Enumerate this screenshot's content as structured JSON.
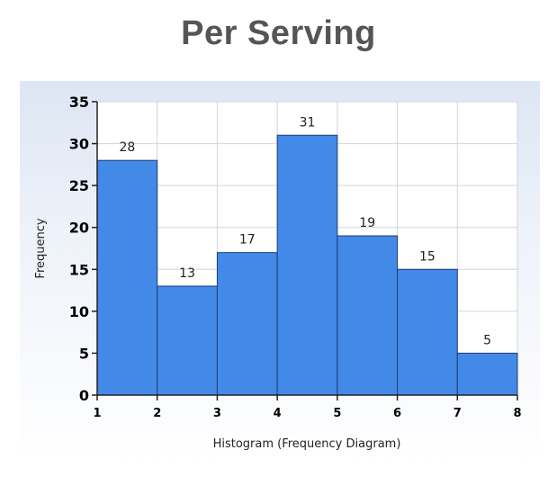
{
  "page": {
    "title": "Per Serving"
  },
  "chart_data": {
    "type": "bar",
    "bin_edges": [
      1,
      2,
      3,
      4,
      5,
      6,
      7,
      8
    ],
    "values": [
      28,
      13,
      17,
      31,
      19,
      15,
      5
    ],
    "data_labels": [
      "28",
      "13",
      "17",
      "31",
      "19",
      "15",
      "5"
    ],
    "xlabel": "Histogram (Frequency Diagram)",
    "ylabel": "Frequency",
    "x_ticks": [
      "1",
      "2",
      "3",
      "4",
      "5",
      "6",
      "7",
      "8"
    ],
    "y_ticks": [
      "0",
      "5",
      "10",
      "15",
      "20",
      "25",
      "30",
      "35"
    ],
    "xlim": [
      1,
      8
    ],
    "ylim": [
      0,
      35
    ],
    "grid": true,
    "legend": "none",
    "colors": {
      "bar_fill": "#4389e8",
      "bar_stroke": "#1c3f72",
      "grid": "#cfd6e0",
      "axis": "#222222"
    }
  }
}
